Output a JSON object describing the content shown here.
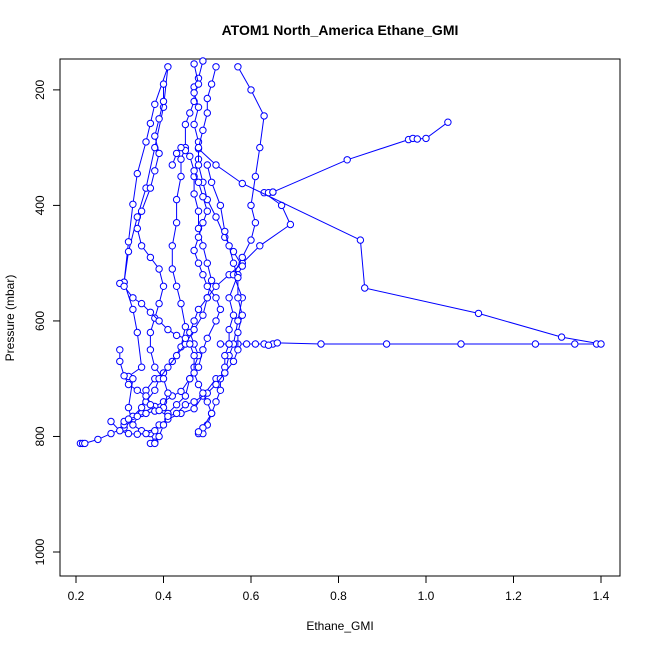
{
  "chart_data": {
    "type": "scatter",
    "title": "ATOM1 North_America Ethane_GMI",
    "xlabel": "Ethane_GMI",
    "ylabel": "Pressure (mbar)",
    "xlim": [
      0.2,
      1.4
    ],
    "ylim": [
      1000,
      150
    ],
    "y_reversed": true,
    "xticks": [
      0.2,
      0.4,
      0.6,
      0.8,
      1.0,
      1.2,
      1.4
    ],
    "xtick_labels": [
      "0.2",
      "0.4",
      "0.6",
      "0.8",
      "1.0",
      "1.2",
      "1.4"
    ],
    "yticks": [
      200,
      400,
      600,
      800,
      1000
    ],
    "ytick_labels": [
      "200",
      "400",
      "600",
      "800",
      "1000"
    ],
    "grid": false,
    "marker": "open-circle",
    "line_style": "connected",
    "color": "#0000ff",
    "series": [
      {
        "name": "",
        "points": [
          [
            0.21,
            812
          ],
          [
            0.215,
            812
          ],
          [
            0.22,
            812
          ],
          [
            0.25,
            805
          ],
          [
            0.28,
            795
          ],
          [
            0.31,
            785
          ],
          [
            0.33,
            770
          ],
          [
            0.35,
            760
          ],
          [
            0.38,
            748
          ],
          [
            0.4,
            740
          ],
          [
            0.42,
            730
          ],
          [
            0.44,
            722
          ],
          [
            0.46,
            700
          ],
          [
            0.47,
            680
          ],
          [
            0.48,
            660
          ],
          [
            0.47,
            640
          ],
          [
            0.46,
            620
          ],
          [
            0.47,
            600
          ],
          [
            0.48,
            580
          ],
          [
            0.5,
            560
          ],
          [
            0.52,
            540
          ],
          [
            0.55,
            520
          ],
          [
            0.58,
            500
          ],
          [
            0.62,
            470
          ],
          [
            0.69,
            433
          ],
          [
            0.67,
            400
          ],
          [
            0.63,
            378
          ],
          [
            0.64,
            378
          ],
          [
            0.65,
            377
          ]
        ]
      },
      {
        "name": "",
        "points": [
          [
            0.65,
            377
          ],
          [
            0.82,
            321
          ],
          [
            0.96,
            286
          ],
          [
            0.97,
            284
          ],
          [
            0.98,
            285
          ],
          [
            1.0,
            284
          ],
          [
            1.05,
            256
          ]
        ]
      },
      {
        "name": "",
        "points": [
          [
            0.53,
            640
          ],
          [
            0.55,
            640
          ],
          [
            0.57,
            640
          ],
          [
            0.59,
            640
          ],
          [
            0.61,
            640
          ],
          [
            0.63,
            640
          ],
          [
            0.65,
            640
          ],
          [
            0.64,
            642
          ],
          [
            0.66,
            638
          ],
          [
            0.76,
            640
          ],
          [
            0.91,
            640
          ],
          [
            1.08,
            640
          ],
          [
            1.25,
            640
          ],
          [
            1.34,
            640
          ],
          [
            1.39,
            640
          ],
          [
            1.4,
            640
          ],
          [
            1.31,
            628
          ],
          [
            1.12,
            587
          ],
          [
            0.86,
            543
          ],
          [
            0.85,
            460
          ],
          [
            0.58,
            362
          ],
          [
            0.52,
            330
          ],
          [
            0.48,
            302
          ]
        ]
      },
      {
        "name": "",
        "points": [
          [
            0.31,
            533
          ],
          [
            0.32,
            463
          ],
          [
            0.33,
            398
          ],
          [
            0.34,
            345
          ],
          [
            0.36,
            290
          ],
          [
            0.37,
            258
          ],
          [
            0.38,
            225
          ],
          [
            0.41,
            160
          ],
          [
            0.4,
            230
          ],
          [
            0.38,
            300
          ],
          [
            0.36,
            370
          ],
          [
            0.34,
            420
          ],
          [
            0.32,
            480
          ],
          [
            0.31,
            533
          ],
          [
            0.33,
            580
          ],
          [
            0.34,
            620
          ],
          [
            0.35,
            680
          ],
          [
            0.32,
            696
          ],
          [
            0.33,
            700
          ],
          [
            0.32,
            750
          ],
          [
            0.33,
            780
          ],
          [
            0.35,
            790
          ],
          [
            0.37,
            795
          ],
          [
            0.38,
            810
          ],
          [
            0.37,
            812
          ],
          [
            0.38,
            812
          ]
        ]
      },
      {
        "name": "",
        "points": [
          [
            0.28,
            774
          ],
          [
            0.3,
            790
          ],
          [
            0.32,
            795
          ],
          [
            0.34,
            796
          ],
          [
            0.36,
            795
          ],
          [
            0.38,
            790
          ],
          [
            0.39,
            780
          ],
          [
            0.41,
            770
          ],
          [
            0.44,
            760
          ],
          [
            0.47,
            752
          ],
          [
            0.49,
            730
          ],
          [
            0.52,
            700
          ],
          [
            0.54,
            690
          ],
          [
            0.55,
            660
          ],
          [
            0.56,
            640
          ],
          [
            0.57,
            600
          ],
          [
            0.58,
            560
          ],
          [
            0.56,
            520
          ],
          [
            0.58,
            490
          ],
          [
            0.6,
            460
          ],
          [
            0.61,
            430
          ],
          [
            0.6,
            400
          ],
          [
            0.61,
            350
          ],
          [
            0.62,
            300
          ],
          [
            0.63,
            245
          ],
          [
            0.6,
            200
          ],
          [
            0.57,
            160
          ]
        ]
      },
      {
        "name": "",
        "points": [
          [
            0.33,
            765
          ],
          [
            0.35,
            750
          ],
          [
            0.36,
            720
          ],
          [
            0.38,
            700
          ],
          [
            0.4,
            690
          ],
          [
            0.42,
            670
          ],
          [
            0.44,
            645
          ],
          [
            0.45,
            610
          ],
          [
            0.44,
            570
          ],
          [
            0.43,
            540
          ],
          [
            0.42,
            510
          ],
          [
            0.42,
            470
          ],
          [
            0.43,
            430
          ],
          [
            0.43,
            390
          ],
          [
            0.44,
            350
          ],
          [
            0.44,
            320
          ],
          [
            0.45,
            300
          ],
          [
            0.45,
            260
          ],
          [
            0.46,
            240
          ],
          [
            0.47,
            220
          ],
          [
            0.47,
            195
          ],
          [
            0.48,
            180
          ],
          [
            0.49,
            150
          ]
        ]
      },
      {
        "name": "",
        "points": [
          [
            0.36,
            740
          ],
          [
            0.38,
            720
          ],
          [
            0.39,
            700
          ],
          [
            0.41,
            680
          ],
          [
            0.43,
            660
          ],
          [
            0.45,
            640
          ],
          [
            0.47,
            615
          ],
          [
            0.49,
            590
          ],
          [
            0.5,
            560
          ],
          [
            0.51,
            530
          ],
          [
            0.5,
            500
          ],
          [
            0.49,
            470
          ],
          [
            0.48,
            440
          ],
          [
            0.48,
            410
          ],
          [
            0.47,
            380
          ],
          [
            0.47,
            350
          ],
          [
            0.48,
            320
          ],
          [
            0.48,
            290
          ],
          [
            0.47,
            260
          ],
          [
            0.48,
            230
          ],
          [
            0.47,
            205
          ],
          [
            0.48,
            190
          ],
          [
            0.47,
            155
          ]
        ]
      },
      {
        "name": "",
        "points": [
          [
            0.48,
            795
          ],
          [
            0.49,
            795
          ],
          [
            0.5,
            780
          ],
          [
            0.51,
            760
          ],
          [
            0.52,
            740
          ],
          [
            0.53,
            720
          ],
          [
            0.53,
            700
          ],
          [
            0.54,
            680
          ],
          [
            0.54,
            660
          ],
          [
            0.55,
            640
          ],
          [
            0.55,
            615
          ],
          [
            0.56,
            590
          ],
          [
            0.55,
            560
          ],
          [
            0.57,
            520
          ],
          [
            0.58,
            505
          ],
          [
            0.56,
            480
          ],
          [
            0.54,
            455
          ],
          [
            0.52,
            420
          ],
          [
            0.5,
            390
          ],
          [
            0.49,
            360
          ],
          [
            0.48,
            330
          ],
          [
            0.48,
            300
          ],
          [
            0.49,
            270
          ],
          [
            0.5,
            240
          ],
          [
            0.5,
            215
          ],
          [
            0.51,
            190
          ],
          [
            0.52,
            160
          ]
        ]
      },
      {
        "name": "",
        "points": [
          [
            0.39,
            800
          ],
          [
            0.4,
            780
          ],
          [
            0.41,
            760
          ],
          [
            0.43,
            745
          ],
          [
            0.45,
            730
          ],
          [
            0.46,
            700
          ],
          [
            0.48,
            680
          ],
          [
            0.49,
            650
          ],
          [
            0.5,
            630
          ],
          [
            0.52,
            600
          ],
          [
            0.53,
            580
          ],
          [
            0.52,
            560
          ],
          [
            0.5,
            540
          ],
          [
            0.49,
            520
          ],
          [
            0.48,
            500
          ],
          [
            0.47,
            478
          ],
          [
            0.48,
            455
          ],
          [
            0.49,
            430
          ],
          [
            0.5,
            410
          ],
          [
            0.49,
            385
          ],
          [
            0.48,
            360
          ],
          [
            0.47,
            340
          ],
          [
            0.46,
            315
          ],
          [
            0.45,
            305
          ],
          [
            0.44,
            300
          ],
          [
            0.43,
            310
          ],
          [
            0.42,
            330
          ]
        ]
      },
      {
        "name": "",
        "points": [
          [
            0.31,
            780
          ],
          [
            0.31,
            774
          ],
          [
            0.32,
            770
          ],
          [
            0.34,
            765
          ],
          [
            0.36,
            760
          ],
          [
            0.38,
            756
          ],
          [
            0.4,
            750
          ],
          [
            0.41,
            725
          ],
          [
            0.4,
            700
          ],
          [
            0.38,
            680
          ],
          [
            0.37,
            650
          ],
          [
            0.37,
            620
          ],
          [
            0.38,
            595
          ],
          [
            0.39,
            570
          ],
          [
            0.4,
            540
          ],
          [
            0.39,
            510
          ],
          [
            0.37,
            490
          ],
          [
            0.35,
            470
          ],
          [
            0.34,
            440
          ],
          [
            0.35,
            410
          ],
          [
            0.37,
            370
          ],
          [
            0.38,
            340
          ],
          [
            0.39,
            310
          ],
          [
            0.38,
            280
          ],
          [
            0.39,
            250
          ],
          [
            0.4,
            220
          ],
          [
            0.4,
            190
          ]
        ]
      },
      {
        "name": "",
        "points": [
          [
            0.3,
            650
          ],
          [
            0.3,
            670
          ],
          [
            0.31,
            695
          ],
          [
            0.32,
            710
          ],
          [
            0.34,
            720
          ],
          [
            0.36,
            730
          ],
          [
            0.37,
            745
          ],
          [
            0.39,
            755
          ],
          [
            0.41,
            765
          ],
          [
            0.43,
            760
          ],
          [
            0.45,
            745
          ],
          [
            0.47,
            740
          ],
          [
            0.5,
            725
          ],
          [
            0.52,
            710
          ],
          [
            0.54,
            690
          ],
          [
            0.56,
            670
          ],
          [
            0.57,
            650
          ],
          [
            0.57,
            620
          ],
          [
            0.58,
            590
          ],
          [
            0.57,
            560
          ],
          [
            0.57,
            525
          ],
          [
            0.56,
            500
          ],
          [
            0.55,
            470
          ],
          [
            0.54,
            445
          ],
          [
            0.53,
            400
          ],
          [
            0.51,
            360
          ],
          [
            0.5,
            330
          ]
        ]
      },
      {
        "name": "",
        "points": [
          [
            0.3,
            535
          ],
          [
            0.31,
            540
          ],
          [
            0.33,
            560
          ],
          [
            0.35,
            570
          ],
          [
            0.37,
            585
          ],
          [
            0.39,
            600
          ],
          [
            0.41,
            615
          ],
          [
            0.43,
            625
          ],
          [
            0.45,
            630
          ],
          [
            0.46,
            640
          ],
          [
            0.47,
            660
          ],
          [
            0.47,
            690
          ],
          [
            0.48,
            710
          ],
          [
            0.49,
            725
          ],
          [
            0.5,
            740
          ],
          [
            0.51,
            760
          ],
          [
            0.49,
            785
          ],
          [
            0.48,
            792
          ]
        ]
      }
    ]
  }
}
